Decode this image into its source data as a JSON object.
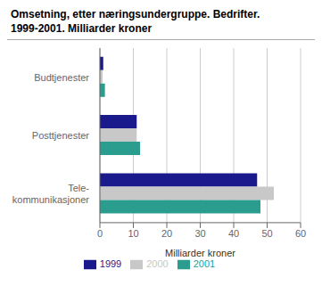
{
  "chart_data": {
    "type": "bar",
    "orientation": "horizontal",
    "title": "Omsetning, etter næringsundergruppe. Bedrifter.",
    "subtitle": "1999-2001. Milliarder kroner",
    "x_label": "Milliarder kroner",
    "categories": [
      "Budtjenester",
      "Posttjenester",
      "Tele-\nkommunikasjoner"
    ],
    "series": [
      {
        "name": "1999",
        "color": "#1a1a8c",
        "values": [
          1.0,
          11.0,
          47.0
        ]
      },
      {
        "name": "2000",
        "color": "#c8c8c8",
        "values": [
          0.8,
          11.0,
          52.0
        ]
      },
      {
        "name": "2001",
        "color": "#2a9d8f",
        "values": [
          1.5,
          12.0,
          48.0
        ]
      }
    ],
    "xlim": [
      0,
      60
    ],
    "xticks": [
      0,
      10,
      20,
      30,
      40,
      50,
      60
    ],
    "grid": true,
    "legend": "bottom"
  }
}
